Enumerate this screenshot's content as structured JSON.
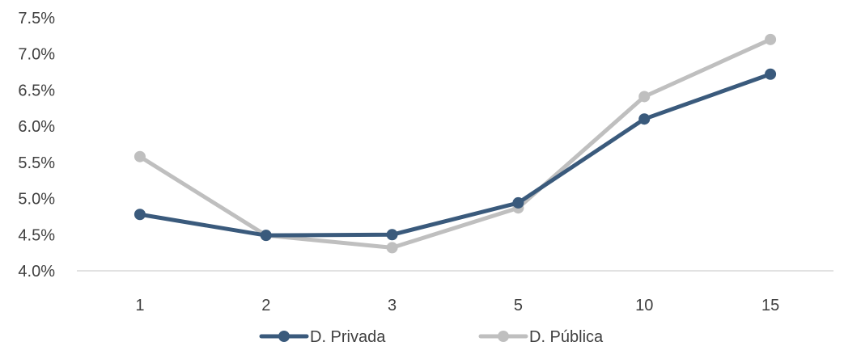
{
  "chart_data": {
    "type": "line",
    "title": "",
    "xlabel": "",
    "ylabel": "",
    "categories": [
      "1",
      "2",
      "3",
      "5",
      "10",
      "15"
    ],
    "ylim": [
      4.0,
      7.5
    ],
    "yticks": [
      "4.0%",
      "4.5%",
      "5.0%",
      "5.5%",
      "6.0%",
      "6.5%",
      "7.0%",
      "7.5%"
    ],
    "grid": false,
    "legend_position": "bottom",
    "series": [
      {
        "name": "D. Privada",
        "color": "#3a5a7c",
        "values": [
          4.78,
          4.49,
          4.5,
          4.94,
          6.1,
          6.72
        ]
      },
      {
        "name": "D. Pública",
        "color": "#bfbfbf",
        "values": [
          5.58,
          4.49,
          4.32,
          4.87,
          6.41,
          7.2
        ]
      }
    ]
  }
}
